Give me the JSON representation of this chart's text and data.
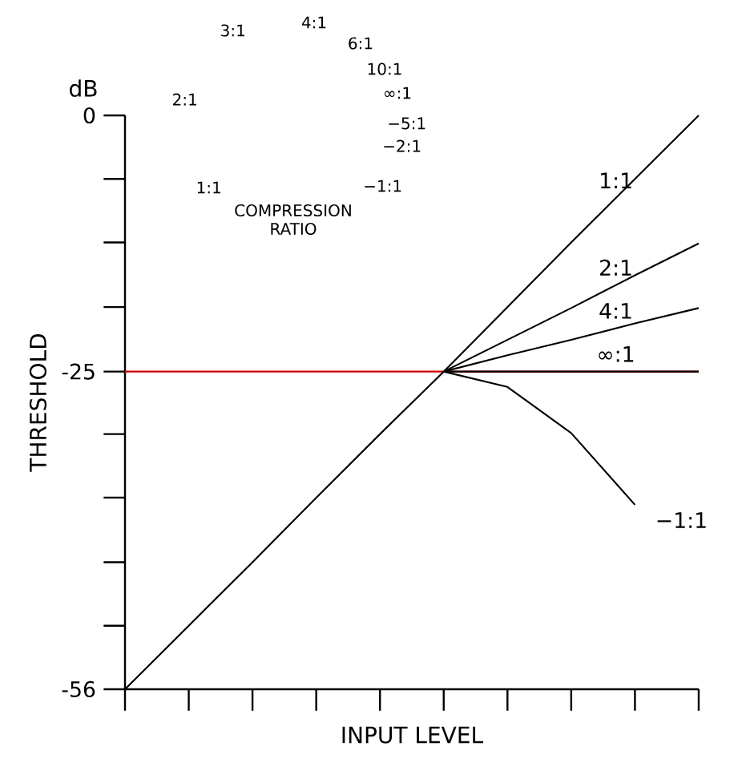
{
  "chart_data": {
    "type": "line",
    "xlabel": "INPUT LEVEL",
    "ylabel": "THRESHOLD",
    "categories": [
      null,
      null,
      null,
      null,
      null,
      null,
      null,
      null,
      null,
      null
    ],
    "ylim": [
      -56,
      0
    ],
    "yticks": [
      0,
      {
        "value": -6.2,
        "label": null
      },
      {
        "value": -12.4,
        "label": null
      },
      {
        "value": -18.7,
        "label": null
      },
      -25,
      {
        "value": -31.1,
        "label": null
      },
      {
        "value": -37.3,
        "label": null
      },
      {
        "value": -43.6,
        "label": null
      },
      {
        "value": -49.8,
        "label": null
      },
      -56
    ],
    "tick_labels": "y",
    "series": [
      {
        "name": "1:1",
        "color": "#000000",
        "values": [
          -56,
          -49.8,
          -43.6,
          -37.3,
          -31.1,
          -25,
          -18.7,
          -12.4,
          -6.2,
          0
        ]
      },
      {
        "name": "2:1",
        "color": "#000000",
        "values": [
          null,
          null,
          null,
          null,
          null,
          -25,
          -21.9,
          -18.8,
          -15.6,
          -12.5
        ]
      },
      {
        "name": "4:1",
        "color": "#000000",
        "values": [
          null,
          null,
          null,
          null,
          null,
          -25,
          -23.4,
          -21.9,
          -20.3,
          -18.8
        ]
      },
      {
        "name": "∞:1",
        "color": "#000000",
        "values": [
          null,
          null,
          null,
          null,
          null,
          -25,
          -25,
          -25,
          -25,
          -25
        ]
      },
      {
        "name": "−1:1",
        "color": "#000000",
        "values": [
          null,
          null,
          null,
          null,
          null,
          -25,
          -26.5,
          -31,
          -38,
          null
        ]
      }
    ],
    "ref_lines": [
      {
        "axis": "y",
        "value": -25,
        "color": "#cc0000"
      }
    ],
    "annotations": [
      "dB",
      "1:1",
      "2:1",
      "3:1",
      "4:1",
      "6:1",
      "10:1",
      "∞:1",
      "−5:1",
      "−2:1",
      "−1:1",
      "COMPRESSION RATIO"
    ]
  }
}
